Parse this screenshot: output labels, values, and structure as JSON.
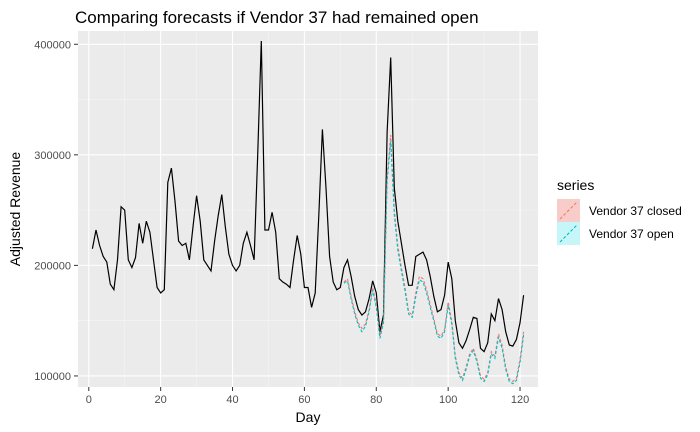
{
  "chart_data": {
    "type": "line",
    "title": "Comparing forecasts if Vendor 37 had remained open",
    "xlabel": "Day",
    "ylabel": "Adjusted Revenue",
    "xlim": [
      -3,
      125
    ],
    "ylim": [
      90000,
      412000
    ],
    "x_ticks": [
      0,
      20,
      40,
      60,
      80,
      100,
      120
    ],
    "x_tick_labels": [
      "0",
      "20",
      "40",
      "60",
      "80",
      "100",
      "120"
    ],
    "y_ticks": [
      100000,
      200000,
      300000,
      400000
    ],
    "y_tick_labels": [
      "100000",
      "200000",
      "300000",
      "400000"
    ],
    "grid": true,
    "legend": {
      "title": "series",
      "position": "right",
      "entries": [
        "Vendor 37 closed",
        "Vendor 37 open"
      ]
    },
    "colors": {
      "panel": "#ebebeb",
      "grid_major": "#ffffff",
      "grid_minor": "#f5f5f5",
      "actual": "#000000",
      "closed": "#F8766D",
      "open": "#00BFC4"
    },
    "actual": {
      "x": [
        1,
        2,
        3,
        4,
        5,
        6,
        7,
        8,
        9,
        10,
        11,
        12,
        13,
        14,
        15,
        16,
        17,
        18,
        19,
        20,
        21,
        22,
        23,
        24,
        25,
        26,
        27,
        28,
        29,
        30,
        31,
        32,
        33,
        34,
        35,
        36,
        37,
        38,
        39,
        40,
        41,
        42,
        43,
        44,
        45,
        46,
        47,
        48,
        49,
        50,
        51,
        52,
        53,
        54,
        55,
        56,
        57,
        58,
        59,
        60,
        61,
        62,
        63,
        64,
        65,
        66,
        67,
        68,
        69,
        70,
        71,
        72,
        73,
        74,
        75,
        76,
        77,
        78,
        79,
        80,
        81,
        82,
        83,
        84,
        85,
        86,
        87,
        88,
        89,
        90,
        91,
        92,
        93,
        94,
        95,
        96,
        97,
        98,
        99,
        100,
        101,
        102,
        103,
        104,
        105,
        106,
        107,
        108,
        109,
        110,
        111,
        112,
        113,
        114,
        115,
        116,
        117,
        118,
        119,
        120,
        121
      ],
      "y": [
        215000,
        232000,
        218000,
        208000,
        203000,
        183000,
        178000,
        205000,
        253000,
        250000,
        205000,
        198000,
        207000,
        238000,
        220000,
        240000,
        230000,
        205000,
        180000,
        175000,
        178000,
        275000,
        288000,
        258000,
        222000,
        218000,
        220000,
        205000,
        235000,
        263000,
        240000,
        205000,
        200000,
        195000,
        222000,
        245000,
        264000,
        235000,
        210000,
        200000,
        195000,
        200000,
        220000,
        230000,
        218000,
        205000,
        300000,
        403000,
        232000,
        232000,
        248000,
        230000,
        188000,
        185000,
        183000,
        180000,
        205000,
        227000,
        210000,
        180000,
        180000,
        162000,
        175000,
        245000,
        323000,
        270000,
        208000,
        185000,
        178000,
        180000,
        198000,
        205000,
        190000,
        172000,
        160000,
        155000,
        158000,
        170000,
        186000,
        175000,
        140000,
        155000,
        320000,
        388000,
        270000,
        240000,
        220000,
        200000,
        182000,
        182000,
        208000,
        210000,
        212000,
        205000,
        190000,
        172000,
        158000,
        160000,
        173000,
        203000,
        188000,
        150000,
        130000,
        125000,
        132000,
        142000,
        153000,
        152000,
        125000,
        122000,
        130000,
        156000,
        150000,
        170000,
        160000,
        140000,
        128000,
        127000,
        133000,
        148000,
        173000
      ]
    },
    "forecast_closed": {
      "x": [
        71,
        72,
        73,
        74,
        75,
        76,
        77,
        78,
        79,
        80,
        81,
        82,
        83,
        84,
        85,
        86,
        87,
        88,
        89,
        90,
        91,
        92,
        93,
        94,
        95,
        96,
        97,
        98,
        99,
        100,
        101,
        102,
        103,
        104,
        105,
        106,
        107,
        108,
        109,
        110,
        111,
        112,
        113,
        114,
        115,
        116,
        117,
        118,
        119,
        120,
        121
      ],
      "y": [
        185000,
        188000,
        172000,
        158000,
        148000,
        143000,
        147000,
        160000,
        180000,
        165000,
        136000,
        150000,
        280000,
        318000,
        250000,
        218000,
        198000,
        180000,
        158000,
        155000,
        175000,
        190000,
        188000,
        178000,
        165000,
        152000,
        138000,
        136000,
        142000,
        167000,
        150000,
        118000,
        103000,
        98000,
        108000,
        120000,
        125000,
        115000,
        100000,
        97000,
        103000,
        122000,
        118000,
        138000,
        128000,
        108000,
        97000,
        95000,
        98000,
        115000,
        140000
      ]
    },
    "forecast_open": {
      "x": [
        71,
        72,
        73,
        74,
        75,
        76,
        77,
        78,
        79,
        80,
        81,
        82,
        83,
        84,
        85,
        86,
        87,
        88,
        89,
        90,
        91,
        92,
        93,
        94,
        95,
        96,
        97,
        98,
        99,
        100,
        101,
        102,
        103,
        104,
        105,
        106,
        107,
        108,
        109,
        110,
        111,
        112,
        113,
        114,
        115,
        116,
        117,
        118,
        119,
        120,
        121
      ],
      "y": [
        184000,
        186000,
        170000,
        156000,
        146000,
        140000,
        145000,
        158000,
        178000,
        162000,
        134000,
        148000,
        276000,
        312000,
        246000,
        214000,
        195000,
        177000,
        156000,
        153000,
        172000,
        187000,
        185000,
        175000,
        162000,
        150000,
        136000,
        134000,
        140000,
        164000,
        147000,
        116000,
        101000,
        96000,
        106000,
        118000,
        123000,
        113000,
        98000,
        95000,
        101000,
        120000,
        116000,
        135000,
        125000,
        106000,
        95000,
        93000,
        96000,
        112000,
        137000
      ]
    }
  }
}
